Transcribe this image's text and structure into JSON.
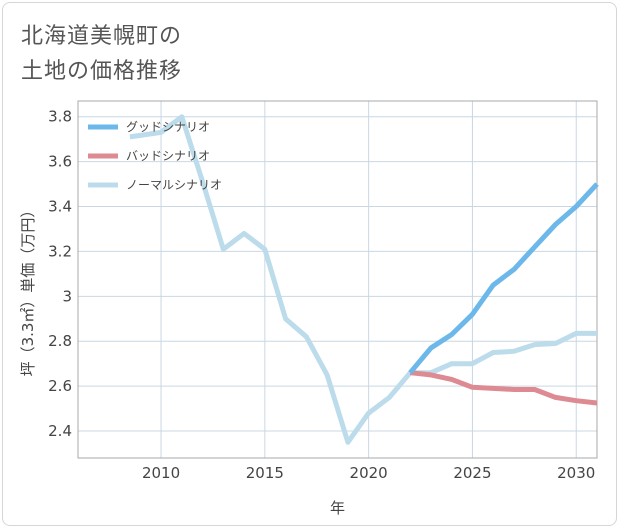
{
  "title_lines": [
    "北海道美幌町の",
    "土地の価格推移"
  ],
  "colors": {
    "good": "#6cb8ea",
    "bad": "#de8a92",
    "normal": "#bcdcec",
    "grid": "#c9d7e3",
    "plot_border": "#a9a9a9"
  },
  "chart_data": {
    "type": "line",
    "title": "北海道美幌町の土地の価格推移",
    "xlabel": "年",
    "ylabel": "坪（3.3㎡）単価（万円）",
    "xlim": [
      2006,
      2031
    ],
    "ylim": [
      2.28,
      3.87
    ],
    "x_ticks": [
      2010,
      2015,
      2020,
      2025,
      2030
    ],
    "y_ticks": [
      2.4,
      2.6,
      2.8,
      3,
      3.2,
      3.4,
      3.6,
      3.8
    ],
    "x_tick_labels": [
      "2010",
      "2015",
      "2020",
      "2025",
      "2030"
    ],
    "y_tick_labels": [
      "2.4",
      "2.6",
      "2.8",
      "3",
      "3.2",
      "3.4",
      "3.6",
      "3.8"
    ],
    "grid": true,
    "legend_position": "top-left",
    "series": [
      {
        "name": "グッドシナリオ",
        "color_key": "good",
        "x": [
          2022,
          2023,
          2024,
          2025,
          2026,
          2027,
          2028,
          2029,
          2030,
          2031
        ],
        "y": [
          2.66,
          2.77,
          2.83,
          2.92,
          3.05,
          3.12,
          3.22,
          3.32,
          3.4,
          3.5
        ]
      },
      {
        "name": "バッドシナリオ",
        "color_key": "bad",
        "x": [
          2022,
          2023,
          2024,
          2025,
          2026,
          2027,
          2028,
          2029,
          2030,
          2031
        ],
        "y": [
          2.66,
          2.65,
          2.63,
          2.595,
          2.59,
          2.585,
          2.585,
          2.55,
          2.535,
          2.525
        ]
      },
      {
        "name": "ノーマルシナリオ",
        "color_key": "normal",
        "x": [
          2008.5,
          2010,
          2011,
          2012,
          2013,
          2014,
          2015,
          2016,
          2017,
          2018,
          2019,
          2020,
          2021,
          2022,
          2023,
          2024,
          2025,
          2026,
          2027,
          2028,
          2029,
          2030,
          2031
        ],
        "y": [
          3.71,
          3.73,
          3.8,
          3.51,
          3.21,
          3.28,
          3.21,
          2.9,
          2.82,
          2.65,
          2.35,
          2.48,
          2.55,
          2.66,
          2.66,
          2.7,
          2.7,
          2.75,
          2.755,
          2.785,
          2.79,
          2.835,
          2.835
        ]
      }
    ]
  }
}
